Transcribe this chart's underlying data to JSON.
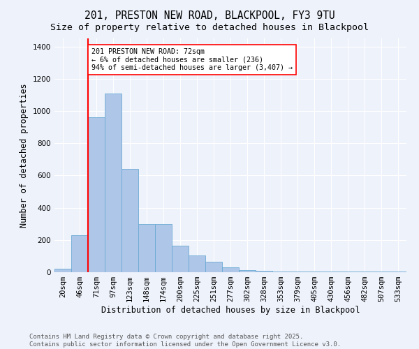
{
  "title1": "201, PRESTON NEW ROAD, BLACKPOOL, FY3 9TU",
  "title2": "Size of property relative to detached houses in Blackpool",
  "xlabel": "Distribution of detached houses by size in Blackpool",
  "ylabel": "Number of detached properties",
  "categories": [
    "20sqm",
    "46sqm",
    "71sqm",
    "97sqm",
    "123sqm",
    "148sqm",
    "174sqm",
    "200sqm",
    "225sqm",
    "251sqm",
    "277sqm",
    "302sqm",
    "328sqm",
    "353sqm",
    "379sqm",
    "405sqm",
    "430sqm",
    "456sqm",
    "482sqm",
    "507sqm",
    "533sqm"
  ],
  "bar_values": [
    20,
    230,
    960,
    1110,
    640,
    300,
    300,
    165,
    105,
    65,
    30,
    15,
    10,
    5,
    5,
    5,
    5,
    5,
    3,
    3,
    3
  ],
  "bar_color": "#aec6e8",
  "bar_edge_color": "#6aaad4",
  "vline_color": "red",
  "vline_pos": 1.5,
  "annotation_text": "201 PRESTON NEW ROAD: 72sqm\n← 6% of detached houses are smaller (236)\n94% of semi-detached houses are larger (3,407) →",
  "annotation_box_color": "white",
  "annotation_box_edge": "red",
  "ylim": [
    0,
    1450
  ],
  "yticks": [
    0,
    200,
    400,
    600,
    800,
    1000,
    1200,
    1400
  ],
  "background_color": "#eef2fb",
  "footer": "Contains HM Land Registry data © Crown copyright and database right 2025.\nContains public sector information licensed under the Open Government Licence v3.0.",
  "title_fontsize": 10.5,
  "subtitle_fontsize": 9.5,
  "axis_label_fontsize": 8.5,
  "tick_fontsize": 7.5,
  "footer_fontsize": 6.5
}
